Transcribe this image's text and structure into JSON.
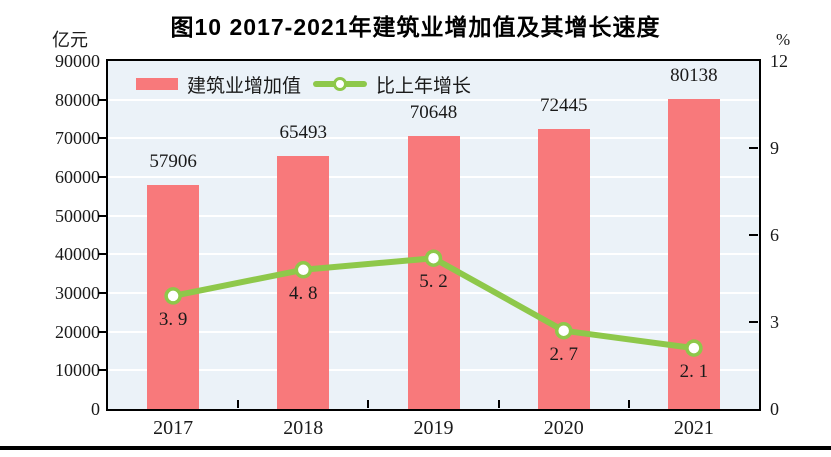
{
  "figure": {
    "title": "图10  2017-2021年建筑业增加值及其增长速度",
    "left_axis_unit": "亿元",
    "right_axis_unit": "%"
  },
  "chart_data": {
    "type": "bar",
    "subtype": "bar-line-combo",
    "title": "图10  2017-2021年建筑业增加值及其增长速度",
    "categories": [
      "2017",
      "2018",
      "2019",
      "2020",
      "2021"
    ],
    "series": [
      {
        "name": "建筑业增加值",
        "type": "bar",
        "axis": "left",
        "unit": "亿元",
        "values": [
          57906,
          65493,
          70648,
          72445,
          80138
        ],
        "labels": [
          "57906",
          "65493",
          "70648",
          "72445",
          "80138"
        ],
        "color": "#F8797B"
      },
      {
        "name": "比上年增长",
        "type": "line",
        "axis": "right",
        "unit": "%",
        "values": [
          3.9,
          4.8,
          5.2,
          2.7,
          2.1
        ],
        "labels": [
          "3. 9",
          "4. 8",
          "5. 2",
          "2. 7",
          "2. 1"
        ],
        "color": "#8EC84A",
        "marker": "circle-white-fill"
      }
    ],
    "left_axis": {
      "label": "亿元",
      "min": 0,
      "max": 90000,
      "tick_step": 10000,
      "tick_labels": [
        "90000",
        "80000",
        "70000",
        "60000",
        "50000",
        "40000",
        "30000",
        "20000",
        "10000",
        "0"
      ]
    },
    "right_axis": {
      "label": "%",
      "min": 0,
      "max": 12,
      "tick_step": 3,
      "tick_labels": [
        "12",
        "9",
        "6",
        "3",
        "0"
      ]
    },
    "grid": "horizontal-white",
    "plot_background": "#EBF2F8",
    "legend_position": "top-inside"
  }
}
